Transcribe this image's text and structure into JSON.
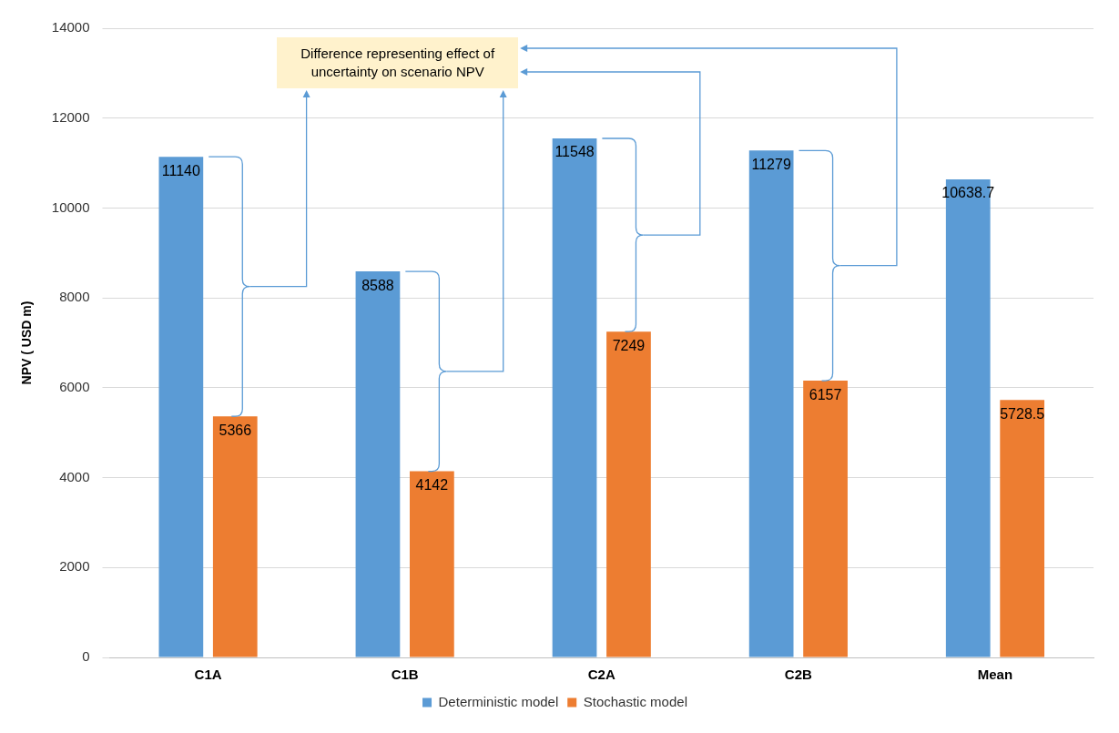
{
  "chart_data": {
    "type": "bar",
    "categories": [
      "C1A",
      "C1B",
      "C2A",
      "C2B",
      "Mean"
    ],
    "series": [
      {
        "name": "Deterministic model",
        "color": "#5b9bd5",
        "values": [
          11140,
          8588,
          11548,
          11279,
          10638.7
        ]
      },
      {
        "name": "Stochastic model",
        "color": "#ed7d31",
        "values": [
          5366,
          4142,
          7249,
          6157,
          5728.5
        ]
      }
    ],
    "ylabel": "NPV ( USD m)",
    "ylim": [
      0,
      14000
    ],
    "yticks": [
      0,
      2000,
      4000,
      6000,
      8000,
      10000,
      12000,
      14000
    ],
    "grid": "y",
    "legend": "bottom",
    "data_labels": true,
    "annotations": [
      "Difference representing effect of uncertainty on scenario NPV"
    ]
  }
}
